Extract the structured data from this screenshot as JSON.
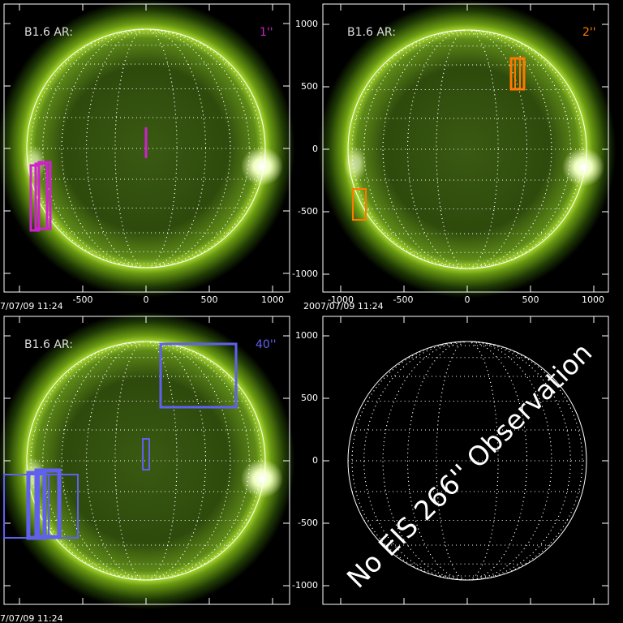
{
  "panels": [
    {
      "label": "B1.6 AR:",
      "size": "1''",
      "timestamp": "7/07/09 11:24",
      "x_ticks": [
        "-500",
        "0",
        "500",
        "1000"
      ],
      "y_ticks": []
    },
    {
      "label": "B1.6 AR:",
      "size": "2''",
      "timestamp": "2007/07/09 11:24",
      "x_ticks": [
        "-1000",
        "-500",
        "0",
        "500",
        "1000"
      ],
      "y_ticks": [
        "1000",
        "500",
        "0",
        "-500",
        "-1000"
      ]
    },
    {
      "label": "B1.6 AR:",
      "size": "40''",
      "timestamp": "7/07/09 11:24",
      "x_ticks": [],
      "y_ticks": []
    },
    {
      "message": "No EIS 266'' Observation",
      "y_ticks": [
        "1000",
        "500",
        "0",
        "-500",
        "-1000"
      ]
    }
  ]
}
